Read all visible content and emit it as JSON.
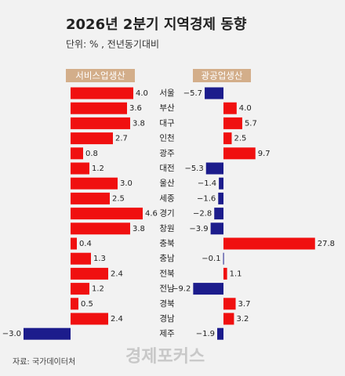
{
  "chart_data": {
    "type": "bar",
    "title": "2026년 2분기 지역경제 동향",
    "subtitle": "단위: % , 전년동기대비",
    "source": "자료: 국가데이터처",
    "watermark": "경제포커스",
    "categories": [
      "서울",
      "부산",
      "대구",
      "인천",
      "광주",
      "대전",
      "울산",
      "세종",
      "경기",
      "창원",
      "충북",
      "충남",
      "전북",
      "전남",
      "경북",
      "경남",
      "제주"
    ],
    "series": [
      {
        "name": "서비스업생산",
        "color": "#f01010",
        "negative_color": "#1c1c8c",
        "values": [
          4.0,
          3.6,
          3.8,
          2.7,
          0.8,
          1.2,
          3.0,
          2.5,
          4.6,
          3.8,
          0.4,
          1.3,
          2.4,
          1.2,
          0.5,
          2.4,
          -3.0
        ],
        "value_labels": [
          "4.0",
          "3.6",
          "3.8",
          "2.7",
          "0.8",
          "1.2",
          "3.0",
          "2.5",
          "4.6",
          "3.8",
          "0.4",
          "1.3",
          "2.4",
          "1.2",
          "0.5",
          "2.4",
          "−3.0"
        ]
      },
      {
        "name": "광공업생산",
        "color": "#f01010",
        "negative_color": "#1c1c8c",
        "values": [
          -5.7,
          4.0,
          5.7,
          2.5,
          9.7,
          -5.3,
          -1.4,
          -1.6,
          -2.8,
          -3.9,
          27.8,
          -0.1,
          1.1,
          -9.2,
          3.7,
          3.2,
          -1.9
        ],
        "value_labels": [
          "−5.7",
          "4.0",
          "5.7",
          "2.5",
          "9.7",
          "−5.3",
          "−1.4",
          "−1.6",
          "−2.8",
          "−3.9",
          "27.8",
          "−0.1",
          "1.1",
          "−9.2",
          "3.7",
          "3.2",
          "−1.9"
        ]
      }
    ]
  }
}
